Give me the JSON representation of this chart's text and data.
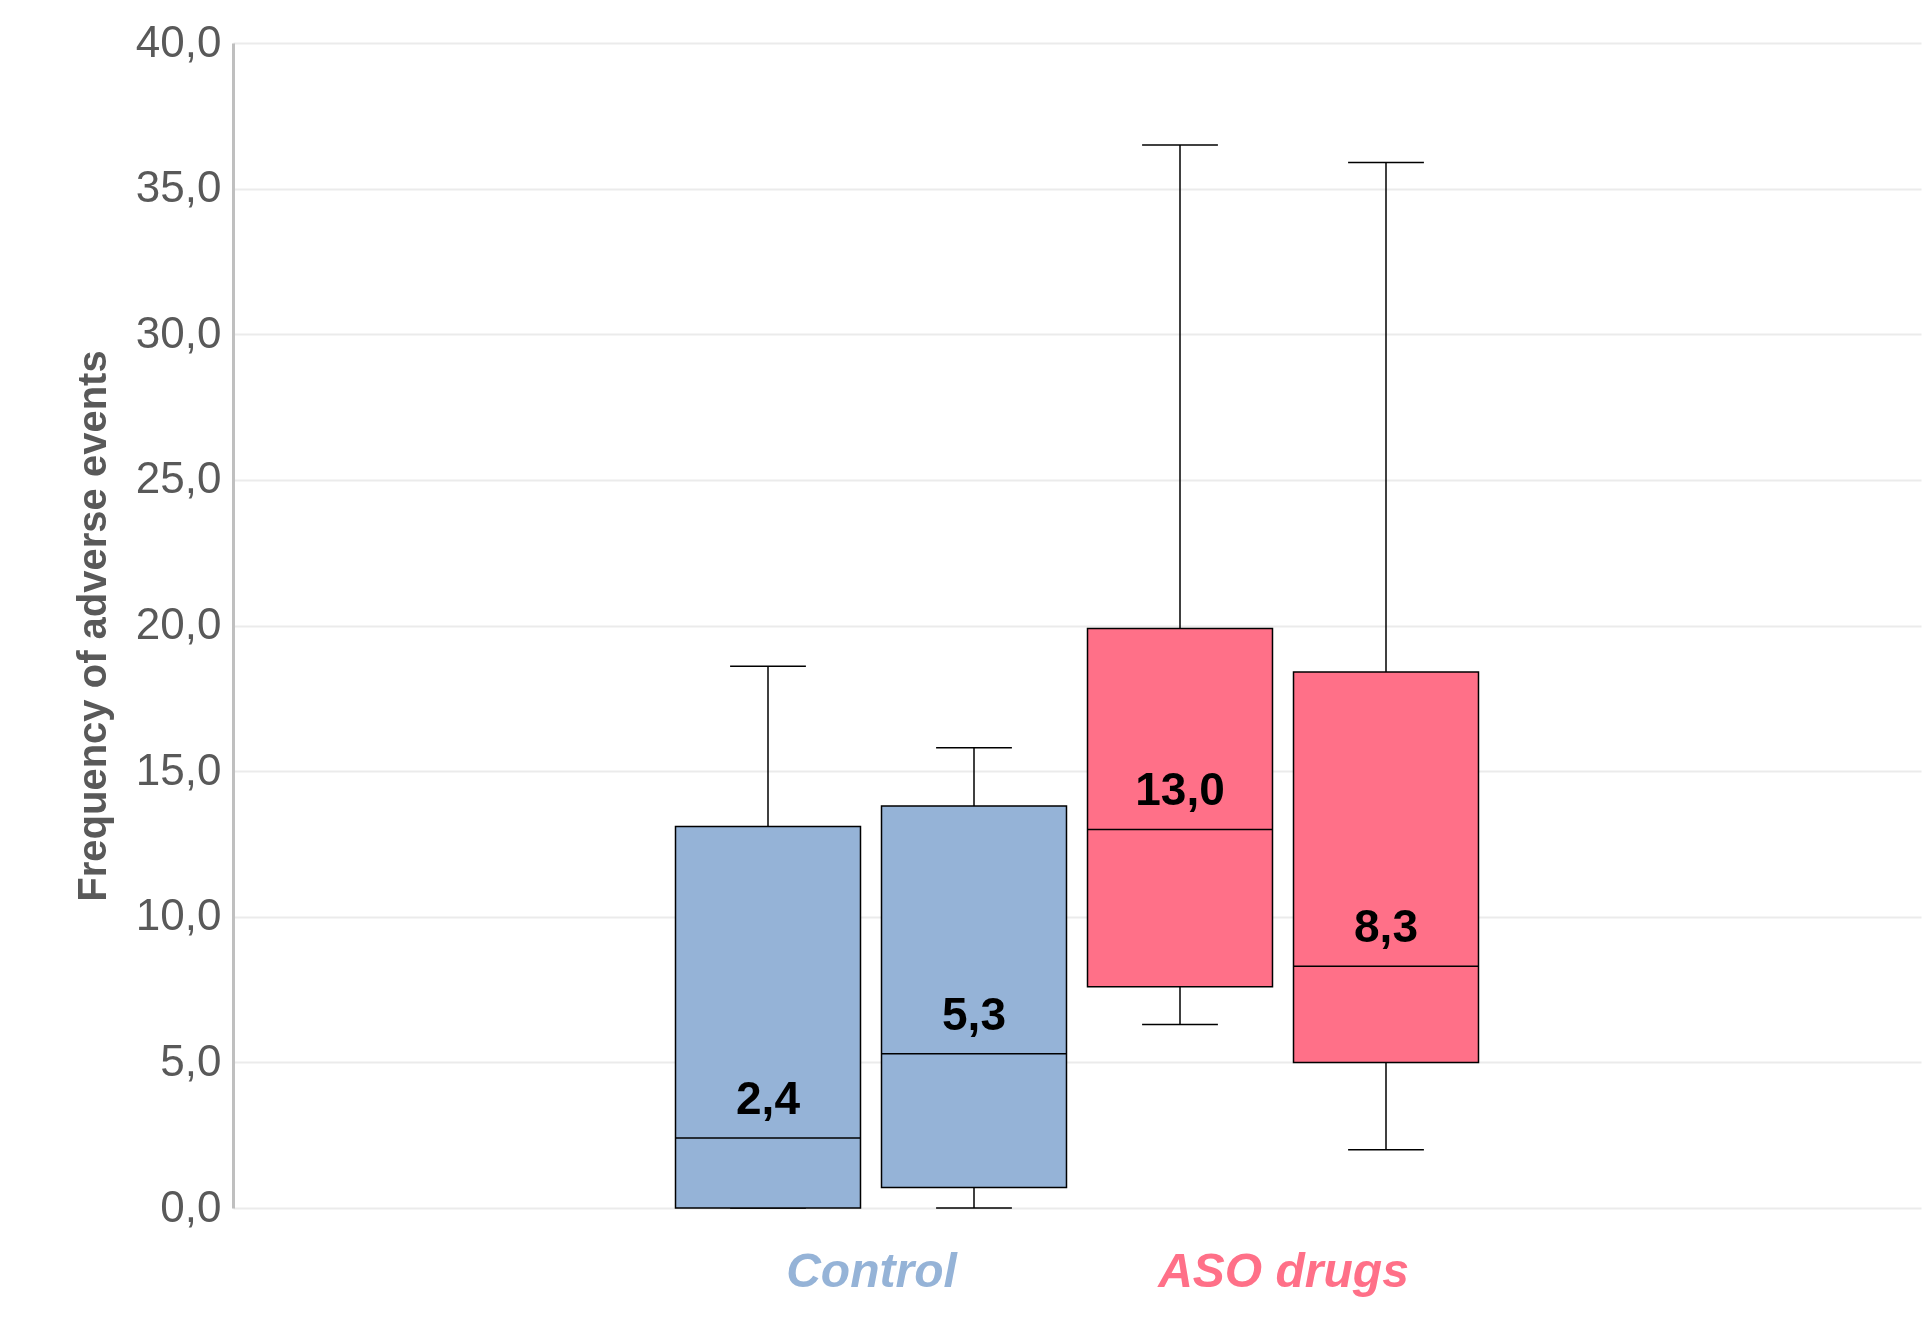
{
  "chart_data": {
    "type": "box",
    "categories": [
      "Control",
      "ASO drugs"
    ],
    "ylabel": "Frequency of adverse events",
    "ylim": [
      0,
      40
    ],
    "yticks": [
      {
        "value": 0,
        "label": "0,0"
      },
      {
        "value": 5,
        "label": "5,0"
      },
      {
        "value": 10,
        "label": "10,0"
      },
      {
        "value": 15,
        "label": "15,0"
      },
      {
        "value": 20,
        "label": "20,0"
      },
      {
        "value": 25,
        "label": "25,0"
      },
      {
        "value": 30,
        "label": "30,0"
      },
      {
        "value": 35,
        "label": "35,0"
      },
      {
        "value": 40,
        "label": "40,0"
      }
    ],
    "grid": "y",
    "annotations": [
      "2,4",
      "5,3",
      "13,0",
      "8,3"
    ],
    "series": [
      {
        "colors": [
          "#95b3d7",
          "#ff7088"
        ],
        "boxes": [
          {
            "low": 0,
            "q1": 0,
            "median": 2.4,
            "q3": 13.1,
            "high": 18.6
          },
          {
            "low": 6.3,
            "q1": 7.6,
            "median": 13.0,
            "q3": 19.9,
            "high": 36.5
          }
        ]
      },
      {
        "colors": [
          "#95b3d7",
          "#ff7088"
        ],
        "boxes": [
          {
            "low": 0,
            "q1": 0.7,
            "median": 5.3,
            "q3": 13.8,
            "high": 15.8
          },
          {
            "low": 2.0,
            "q1": 5.0,
            "median": 8.3,
            "q3": 18.4,
            "high": 35.9
          }
        ]
      }
    ]
  }
}
